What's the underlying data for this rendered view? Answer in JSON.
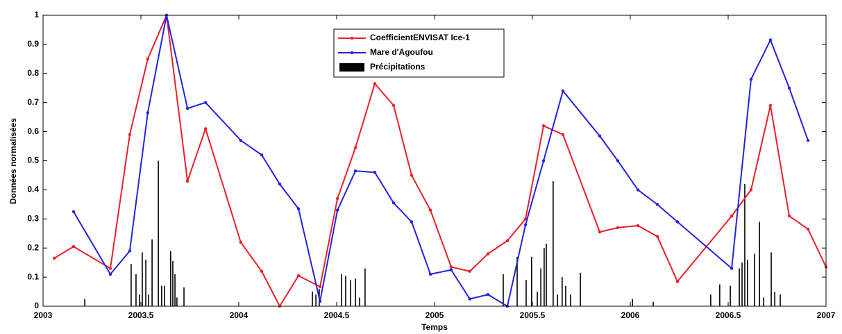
{
  "chart_data": {
    "type": "line",
    "xlabel": "Temps",
    "ylabel": "Données normalisées",
    "xlim": [
      2003,
      2007
    ],
    "xticks": [
      2003,
      2003.5,
      2004,
      2004.5,
      2005,
      2005.5,
      2006,
      2006.5,
      2007
    ],
    "ylim": [
      0,
      1
    ],
    "yticks": [
      0,
      0.1,
      0.2,
      0.3,
      0.4,
      0.5,
      0.6,
      0.7,
      0.8,
      0.9,
      1
    ],
    "legend": "upper center",
    "series": [
      {
        "name": "CoefficientENVISAT Ice-1",
        "color": "#e8202a",
        "type": "line",
        "x": [
          2003.057,
          2003.156,
          2003.344,
          2003.443,
          2003.535,
          2003.631,
          2003.738,
          2003.83,
          2004.01,
          2004.117,
          2004.209,
          2004.305,
          2004.415,
          2004.504,
          2004.596,
          2004.695,
          2004.791,
          2004.883,
          2004.979,
          2005.085,
          2005.18,
          2005.273,
          2005.372,
          2005.465,
          2005.557,
          2005.656,
          2005.844,
          2005.936,
          2006.039,
          2006.138,
          2006.241,
          2006.518,
          2006.617,
          2006.716,
          2006.812,
          2006.908,
          2007.0
        ],
        "values": [
          0.165,
          0.205,
          0.13,
          0.59,
          0.85,
          1.0,
          0.43,
          0.61,
          0.22,
          0.12,
          0,
          0.105,
          0.067,
          0.37,
          0.545,
          0.765,
          0.69,
          0.45,
          0.33,
          0.135,
          0.12,
          0.18,
          0.225,
          0.3,
          0.62,
          0.59,
          0.255,
          0.27,
          0.277,
          0.24,
          0.085,
          0.31,
          0.4,
          0.69,
          0.31,
          0.265,
          0.135
        ]
      },
      {
        "name": "Mare d'Agoufou",
        "color": "#2323e0",
        "type": "line",
        "x": [
          2003.156,
          2003.344,
          2003.443,
          2003.535,
          2003.631,
          2003.738,
          2003.83,
          2004.01,
          2004.117,
          2004.209,
          2004.305,
          2004.415,
          2004.504,
          2004.596,
          2004.695,
          2004.791,
          2004.883,
          2004.979,
          2005.085,
          2005.18,
          2005.273,
          2005.372,
          2005.465,
          2005.557,
          2005.656,
          2005.844,
          2005.936,
          2006.039,
          2006.138,
          2006.241,
          2006.518,
          2006.617,
          2006.716,
          2006.812,
          2006.908
        ],
        "values": [
          0.325,
          0.11,
          0.19,
          0.665,
          1.0,
          0.68,
          0.7,
          0.57,
          0.52,
          0.42,
          0.335,
          0.017,
          0.33,
          0.465,
          0.46,
          0.355,
          0.29,
          0.11,
          0.125,
          0.025,
          0.04,
          0,
          0.28,
          0.5,
          0.74,
          0.585,
          0.5,
          0.4,
          0.35,
          0.29,
          0.13,
          0.78,
          0.915,
          0.75,
          0.57
        ]
      },
      {
        "name": "Précipitations",
        "color": "#000000",
        "type": "bar",
        "x": [
          2003.213,
          2003.45,
          2003.475,
          2003.493,
          2003.507,
          2003.525,
          2003.539,
          2003.557,
          2003.589,
          2003.606,
          2003.621,
          2003.652,
          2003.663,
          2003.674,
          2003.684,
          2003.72,
          2004.376,
          2004.394,
          2004.411,
          2004.525,
          2004.546,
          2004.571,
          2004.596,
          2004.617,
          2004.645,
          2005.351,
          2005.422,
          2005.468,
          2005.496,
          2005.525,
          2005.543,
          2005.56,
          2005.571,
          2005.606,
          2005.628,
          2005.652,
          2005.67,
          2005.695,
          2005.745,
          2006.011,
          2006.117,
          2006.411,
          2006.457,
          2006.511,
          2006.557,
          2006.571,
          2006.585,
          2006.599,
          2006.635,
          2006.66,
          2006.681,
          2006.72,
          2006.738,
          2006.766
        ],
        "values": [
          0.025,
          0.145,
          0.11,
          0.04,
          0.185,
          0.16,
          0.04,
          0.23,
          0.5,
          0.07,
          0.07,
          0.19,
          0.155,
          0.11,
          0.03,
          0.065,
          0.05,
          0.04,
          0.06,
          0.11,
          0.105,
          0.09,
          0.095,
          0.03,
          0.13,
          0.11,
          0.17,
          0.09,
          0.17,
          0.05,
          0.13,
          0.2,
          0.215,
          0.43,
          0.04,
          0.1,
          0.07,
          0.04,
          0.115,
          0.025,
          0.015,
          0.04,
          0.075,
          0.07,
          0.13,
          0.15,
          0.42,
          0.16,
          0.18,
          0.29,
          0.03,
          0.185,
          0.05,
          0.04
        ]
      }
    ]
  }
}
